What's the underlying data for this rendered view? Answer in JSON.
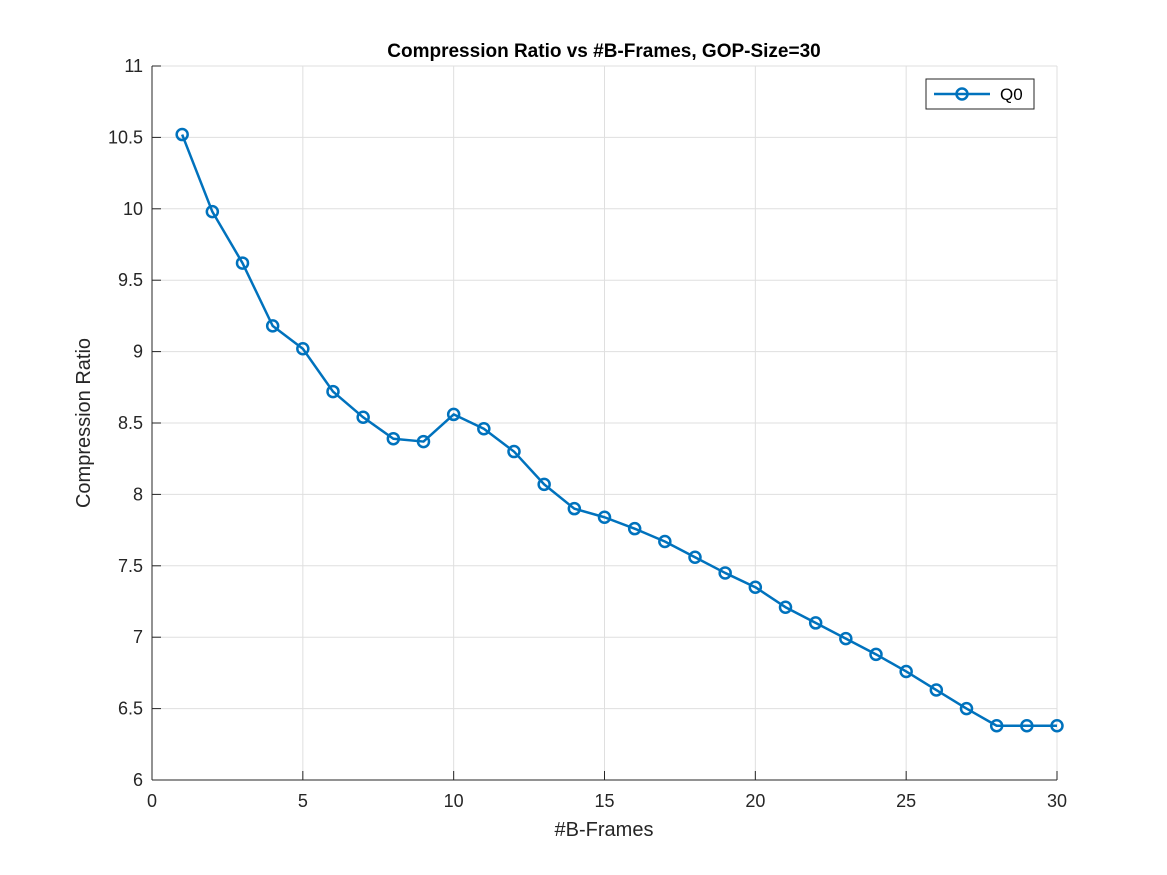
{
  "chart_data": {
    "type": "line",
    "title": "Compression Ratio vs #B-Frames, GOP-Size=30",
    "xlabel": "#B-Frames",
    "ylabel": "Compression Ratio",
    "xlim": [
      0,
      30
    ],
    "ylim": [
      6,
      11
    ],
    "xticks": [
      0,
      5,
      10,
      15,
      20,
      25,
      30
    ],
    "yticks": [
      6,
      6.5,
      7,
      7.5,
      8,
      8.5,
      9,
      9.5,
      10,
      10.5,
      11
    ],
    "xtick_labels": [
      "0",
      "5",
      "10",
      "15",
      "20",
      "25",
      "30"
    ],
    "ytick_labels": [
      "6",
      "6.5",
      "7",
      "7.5",
      "8",
      "8.5",
      "9",
      "9.5",
      "10",
      "10.5",
      "11"
    ],
    "grid": true,
    "legend_position": "top-right",
    "series": [
      {
        "name": "Q0",
        "color": "#0072BD",
        "marker": "circle",
        "x": [
          1,
          2,
          3,
          4,
          5,
          6,
          7,
          8,
          9,
          10,
          11,
          12,
          13,
          14,
          15,
          16,
          17,
          18,
          19,
          20,
          21,
          22,
          23,
          24,
          25,
          26,
          27,
          28,
          29,
          30
        ],
        "y": [
          10.52,
          9.98,
          9.62,
          9.18,
          9.02,
          8.72,
          8.54,
          8.39,
          8.37,
          8.56,
          8.46,
          8.3,
          8.07,
          7.9,
          7.84,
          7.76,
          7.67,
          7.56,
          7.45,
          7.35,
          7.21,
          7.1,
          6.99,
          6.88,
          6.76,
          6.63,
          6.5,
          6.38,
          6.38,
          6.38
        ]
      }
    ]
  }
}
